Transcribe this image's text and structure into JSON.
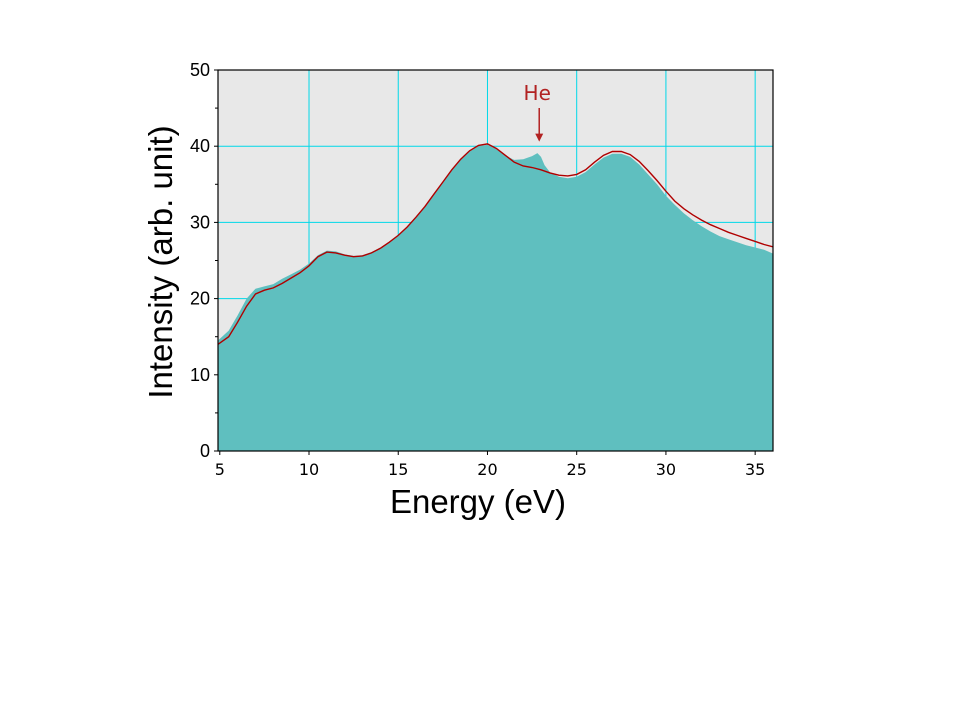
{
  "chart_data": {
    "type": "area",
    "xlabel": "Energy (eV)",
    "ylabel": "Intensity (arb. unit)",
    "xlim": [
      4.9,
      36.0
    ],
    "ylim": [
      0,
      50
    ],
    "xticks": [
      5,
      10,
      15,
      20,
      25,
      30,
      35
    ],
    "yticks": [
      0,
      10,
      20,
      30,
      40,
      50
    ],
    "xgrid_lines": [
      10,
      15,
      20,
      25,
      30,
      35
    ],
    "ygrid_lines": [
      10,
      20,
      30,
      40
    ],
    "grid": true,
    "plot_background": "#e8e8e8",
    "grid_color": "#00d8e8",
    "series": [
      {
        "kind": "filled-area",
        "color": "#5fbfbf",
        "x": [
          4.9,
          5.5,
          6.0,
          6.5,
          7.0,
          7.5,
          8.0,
          8.5,
          9.0,
          9.5,
          10.0,
          10.5,
          11.0,
          11.5,
          12.0,
          12.5,
          13.0,
          13.5,
          14.0,
          14.5,
          15.0,
          15.5,
          16.0,
          16.5,
          17.0,
          17.5,
          18.0,
          18.5,
          19.0,
          19.5,
          20.0,
          20.5,
          21.0,
          21.5,
          22.0,
          22.5,
          22.8,
          23.0,
          23.2,
          23.5,
          24.0,
          24.5,
          25.0,
          25.5,
          26.0,
          26.5,
          27.0,
          27.5,
          28.0,
          28.5,
          29.0,
          29.5,
          30.0,
          30.5,
          31.0,
          31.5,
          32.0,
          32.5,
          33.0,
          33.5,
          34.0,
          34.5,
          35.0,
          35.5,
          36.0
        ],
        "y": [
          14.5,
          15.8,
          17.8,
          20.0,
          21.3,
          21.6,
          21.9,
          22.6,
          23.2,
          23.8,
          24.6,
          25.7,
          26.3,
          26.2,
          25.8,
          25.6,
          25.7,
          26.1,
          26.7,
          27.4,
          28.3,
          29.3,
          30.6,
          32.0,
          33.6,
          35.2,
          36.8,
          38.2,
          39.3,
          40.0,
          40.2,
          39.6,
          38.8,
          38.2,
          38.3,
          38.7,
          39.1,
          38.6,
          37.5,
          36.6,
          36.0,
          35.8,
          36.0,
          36.6,
          37.6,
          38.5,
          39.0,
          39.0,
          38.6,
          37.6,
          36.3,
          35.0,
          33.5,
          32.3,
          31.2,
          30.3,
          29.5,
          28.8,
          28.2,
          27.8,
          27.4,
          27.0,
          26.7,
          26.4,
          25.9
        ]
      },
      {
        "kind": "line",
        "color": "#b00000",
        "x": [
          4.9,
          5.5,
          6.0,
          6.5,
          7.0,
          7.5,
          8.0,
          8.5,
          9.0,
          9.5,
          10.0,
          10.5,
          11.0,
          11.5,
          12.0,
          12.5,
          13.0,
          13.5,
          14.0,
          14.5,
          15.0,
          15.5,
          16.0,
          16.5,
          17.0,
          17.5,
          18.0,
          18.5,
          19.0,
          19.5,
          20.0,
          20.5,
          21.0,
          21.5,
          22.0,
          22.5,
          23.0,
          23.5,
          24.0,
          24.5,
          25.0,
          25.5,
          26.0,
          26.5,
          27.0,
          27.5,
          28.0,
          28.5,
          29.0,
          29.5,
          30.0,
          30.5,
          31.0,
          31.5,
          32.0,
          32.5,
          33.0,
          33.5,
          34.0,
          34.5,
          35.0,
          35.5,
          36.0
        ],
        "y": [
          14.0,
          15.0,
          16.9,
          19.0,
          20.6,
          21.1,
          21.4,
          22.0,
          22.7,
          23.4,
          24.3,
          25.5,
          26.1,
          26.0,
          25.7,
          25.5,
          25.6,
          26.0,
          26.6,
          27.4,
          28.3,
          29.4,
          30.7,
          32.1,
          33.7,
          35.3,
          36.9,
          38.3,
          39.4,
          40.1,
          40.3,
          39.7,
          38.8,
          37.9,
          37.4,
          37.2,
          36.9,
          36.5,
          36.2,
          36.1,
          36.3,
          36.9,
          37.9,
          38.8,
          39.3,
          39.3,
          38.9,
          38.0,
          36.8,
          35.5,
          34.1,
          32.8,
          31.8,
          31.0,
          30.3,
          29.7,
          29.2,
          28.7,
          28.3,
          27.9,
          27.5,
          27.1,
          26.8
        ]
      }
    ],
    "annotations": [
      {
        "text": "He",
        "x": 22.9,
        "y_tip": 40.6,
        "color": "#b22222"
      }
    ]
  }
}
